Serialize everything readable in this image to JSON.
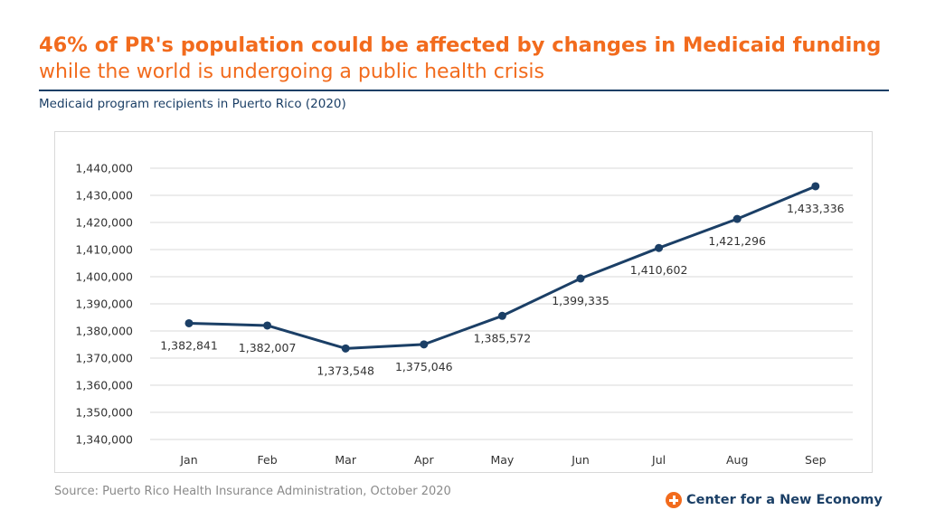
{
  "headline": "46% of PR's population could be affected by changes in Medicaid funding",
  "subheadline": "while the world is undergoing a public health crisis",
  "source": "Source: Puerto Rico Health Insurance Administration, October 2020",
  "brand": {
    "name": "Center for a New Economy",
    "icon": "plus-circle-icon"
  },
  "colors": {
    "accent": "#f26b1d",
    "line": "#1b3f66",
    "grid": "#d9d9d9"
  },
  "chart_data": {
    "type": "line",
    "title": "Medicaid program recipients in Puerto Rico (2020)",
    "xlabel": "",
    "ylabel": "",
    "categories": [
      "Jan",
      "Feb",
      "Mar",
      "Apr",
      "May",
      "Jun",
      "Jul",
      "Aug",
      "Sep"
    ],
    "values": [
      1382841,
      1382007,
      1373548,
      1375046,
      1385572,
      1399335,
      1410602,
      1421296,
      1433336
    ],
    "value_labels": [
      "1,382,841",
      "1,382,007",
      "1,373,548",
      "1,375,046",
      "1,385,572",
      "1,399,335",
      "1,410,602",
      "1,421,296",
      "1,433,336"
    ],
    "ylim": [
      1340000,
      1440000
    ],
    "yticks": [
      1340000,
      1350000,
      1360000,
      1370000,
      1380000,
      1390000,
      1400000,
      1410000,
      1420000,
      1430000,
      1440000
    ],
    "ytick_labels": [
      "1,340,000",
      "1,350,000",
      "1,360,000",
      "1,370,000",
      "1,380,000",
      "1,390,000",
      "1,400,000",
      "1,410,000",
      "1,420,000",
      "1,430,000",
      "1,440,000"
    ],
    "grid": true,
    "legend": false
  }
}
